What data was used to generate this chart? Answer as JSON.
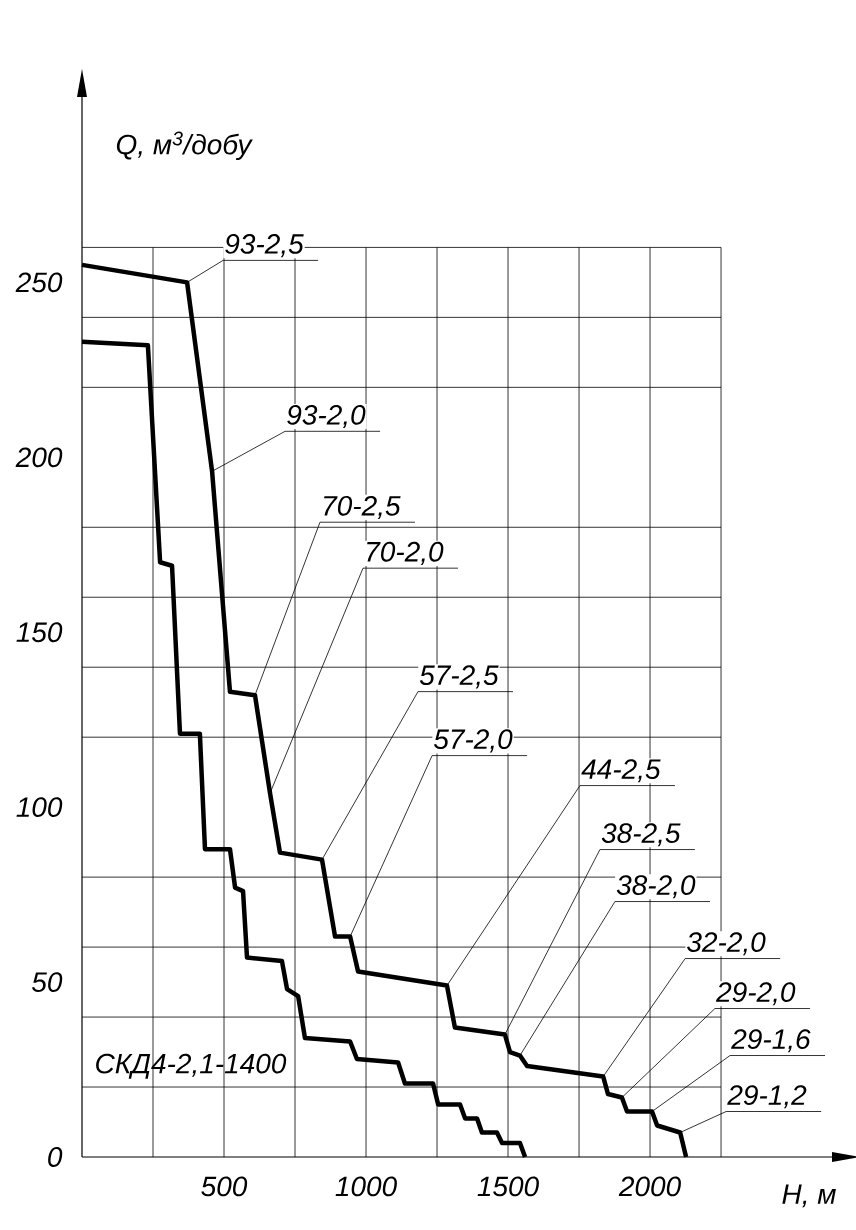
{
  "chart_data": {
    "type": "line",
    "xlabel": "Н, м",
    "ylabel": "Q, м$^{3}$/добу",
    "xlim": [
      0,
      2690
    ],
    "ylim": [
      0,
      303
    ],
    "xticks": [
      {
        "value": 250,
        "label": null
      },
      500,
      {
        "value": 750,
        "label": null
      },
      1000,
      {
        "value": 1250,
        "label": null
      },
      1500,
      {
        "value": 1750,
        "label": null
      },
      2000,
      {
        "value": 2250,
        "label": null
      }
    ],
    "yticks": [
      0,
      {
        "value": 20,
        "label": null
      },
      {
        "value": 40,
        "label": null
      },
      50,
      {
        "value": 60,
        "label": null
      },
      {
        "value": 80,
        "label": null
      },
      100,
      {
        "value": 120,
        "label": null
      },
      {
        "value": 140,
        "label": null
      },
      150,
      {
        "value": 160,
        "label": null
      },
      {
        "value": 180,
        "label": null
      },
      200,
      {
        "value": 220,
        "label": null
      },
      {
        "value": 240,
        "label": null
      },
      250,
      {
        "value": 260,
        "label": null
      }
    ],
    "grid": true,
    "marker": "none",
    "line_style": "solid",
    "series": [
      {
        "color": "#000000",
        "x": [
          0,
          232,
          275,
          317,
          345,
          415,
          433,
          521,
          539,
          567,
          581,
          704,
          722,
          761,
          785,
          944,
          968,
          1113,
          1137,
          1236,
          1254,
          1331,
          1349,
          1391,
          1408,
          1461,
          1479,
          1542,
          1560
        ],
        "values": [
          233,
          232,
          170,
          169,
          121,
          121,
          88,
          88,
          77,
          76,
          57,
          56,
          48,
          46,
          34,
          33,
          28,
          27,
          21,
          21,
          15,
          15,
          11,
          11,
          7,
          7,
          4,
          4,
          0
        ]
      },
      {
        "color": "#000000",
        "x": [
          0,
          370,
          458,
          521,
          609,
          662,
          697,
          845,
          891,
          944,
          972,
          1285,
          1313,
          1489,
          1507,
          1542,
          1567,
          1835,
          1852,
          1901,
          1919,
          2007,
          2025,
          2106,
          2127
        ],
        "values": [
          255,
          250,
          196,
          133,
          132,
          104,
          87,
          85,
          63,
          63,
          53,
          49,
          37,
          35,
          30,
          29,
          26,
          23,
          18,
          17,
          13,
          13,
          9,
          7,
          0
        ]
      }
    ],
    "annotations": [
      {
        "text": "93-2,5",
        "x": 370,
        "y": 250
      },
      {
        "text": "93-2,0",
        "x": 458,
        "y": 196
      },
      {
        "text": "70-2,5",
        "x": 609,
        "y": 132
      },
      {
        "text": "70-2,0",
        "x": 662,
        "y": 104
      },
      {
        "text": "57-2,5",
        "x": 845,
        "y": 85
      },
      {
        "text": "57-2,0",
        "x": 944,
        "y": 63
      },
      {
        "text": "44-2,5",
        "x": 1285,
        "y": 49
      },
      {
        "text": "38-2,5",
        "x": 1489,
        "y": 35
      },
      {
        "text": "38-2,0",
        "x": 1542,
        "y": 29
      },
      {
        "text": "32-2,0",
        "x": 1835,
        "y": 23
      },
      {
        "text": "29-2,0",
        "x": 1901,
        "y": 17
      },
      {
        "text": "29-1,6",
        "x": 2007,
        "y": 13
      },
      {
        "text": "29-1,2",
        "x": 2106,
        "y": 7
      },
      "СКД4-2,1-1400"
    ]
  }
}
